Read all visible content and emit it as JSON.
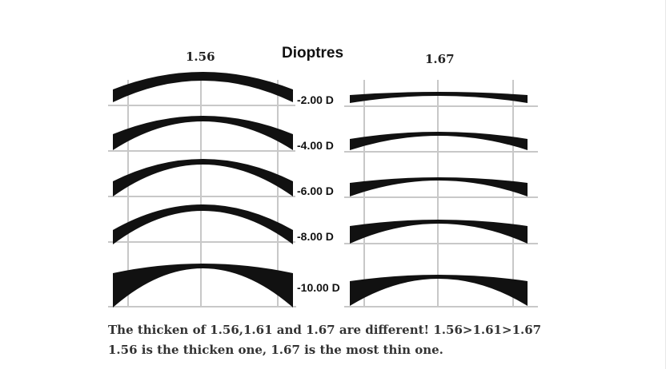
{
  "labels": {
    "left_index": "1.56",
    "right_index": "1.67",
    "title": "Dioptres"
  },
  "powers": [
    "-2.00 D",
    "-4.00 D",
    "-6.00 D",
    "-8.00 D",
    "-10.00 D"
  ],
  "caption": {
    "line1": "The thicken of 1.56,1.61 and 1.67 are different! 1.56>1.61>1.67",
    "line2": "1.56 is the thicken one, 1.67 is the most thin one."
  },
  "colors": {
    "lens": "#111111",
    "grid": "#c8c8c8",
    "background": "#ffffff"
  }
}
